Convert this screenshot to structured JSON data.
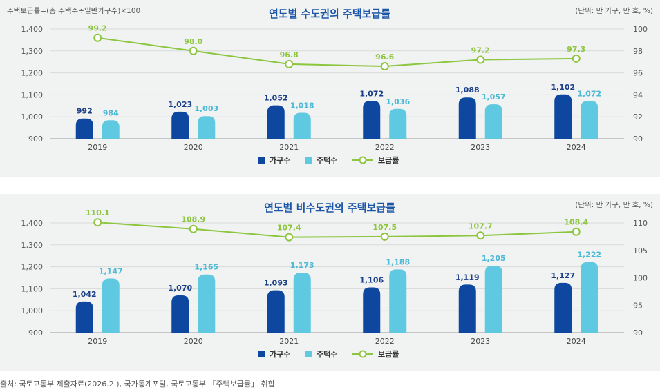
{
  "colors": {
    "households": "#0e47a0",
    "housing": "#5ec9e0",
    "rate_line": "#8cc63e",
    "title": "#1c56a8",
    "panel_bg": "#f1f2f2"
  },
  "chart_data": [
    {
      "type": "bar",
      "title": "연도별 수도권의 주택보급률",
      "note_left": "주택보급률=(총 주택수÷일반가구수)×100",
      "note_right": "(단위: 만 가구, 만 호, %)",
      "categories": [
        "2019",
        "2020",
        "2021",
        "2022",
        "2023",
        "2024"
      ],
      "series": [
        {
          "name": "가구수",
          "values": [
            992,
            1023,
            1052,
            1072,
            1088,
            1102
          ],
          "labels": [
            "992",
            "1,023",
            "1,052",
            "1,072",
            "1,088",
            "1,102"
          ]
        },
        {
          "name": "주택수",
          "values": [
            984,
            1003,
            1018,
            1036,
            1057,
            1072
          ],
          "labels": [
            "984",
            "1,003",
            "1,018",
            "1,036",
            "1,057",
            "1,072"
          ]
        },
        {
          "name": "보급률",
          "type": "line",
          "axis": "right",
          "values": [
            99.2,
            98.0,
            96.8,
            96.6,
            97.2,
            97.3
          ],
          "labels": [
            "99.2",
            "98.0",
            "96.8",
            "96.6",
            "97.2",
            "97.3"
          ]
        }
      ],
      "y_left": {
        "min": 900,
        "max": 1400,
        "ticks": [
          "900",
          "1,000",
          "1,100",
          "1,200",
          "1,300",
          "1,400"
        ]
      },
      "y_right": {
        "min": 90,
        "max": 100,
        "ticks": [
          "90",
          "92",
          "94",
          "96",
          "98",
          "100"
        ]
      },
      "legend": [
        "가구수",
        "주택수",
        "보급률"
      ]
    },
    {
      "type": "bar",
      "title": "연도별 비수도권의 주택보급률",
      "note_right": "(단위: 만 가구, 만 호, %)",
      "categories": [
        "2019",
        "2020",
        "2021",
        "2022",
        "2023",
        "2024"
      ],
      "series": [
        {
          "name": "가구수",
          "values": [
            1042,
            1070,
            1093,
            1106,
            1119,
            1127
          ],
          "labels": [
            "1,042",
            "1,070",
            "1,093",
            "1,106",
            "1,119",
            "1,127"
          ]
        },
        {
          "name": "주택수",
          "values": [
            1147,
            1165,
            1173,
            1188,
            1205,
            1222
          ],
          "labels": [
            "1,147",
            "1,165",
            "1,173",
            "1,188",
            "1,205",
            "1,222"
          ]
        },
        {
          "name": "보급률",
          "type": "line",
          "axis": "right",
          "values": [
            110.1,
            108.9,
            107.4,
            107.5,
            107.7,
            108.4
          ],
          "labels": [
            "110.1",
            "108.9",
            "107.4",
            "107.5",
            "107.7",
            "108.4"
          ]
        }
      ],
      "y_left": {
        "min": 900,
        "max": 1400,
        "ticks": [
          "900",
          "1,000",
          "1,100",
          "1,200",
          "1,300",
          "1,400"
        ]
      },
      "y_right": {
        "min": 90,
        "max": 110,
        "ticks": [
          "90",
          "95",
          "100",
          "105",
          "110"
        ]
      },
      "legend": [
        "가구수",
        "주택수",
        "보급률"
      ]
    }
  ],
  "source_text": "출처: 국토교통부 제출자료(2026.2.), 국가통계포털, 국토교통부 「주택보급률」 취합"
}
